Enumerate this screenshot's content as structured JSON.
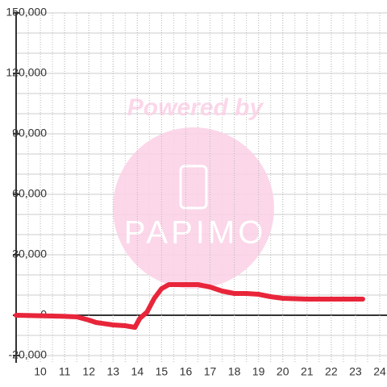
{
  "chart_data": {
    "type": "line",
    "watermark": {
      "top": "Powered by",
      "logo": "PAPIMO"
    },
    "x": [
      9,
      10.9,
      11.5,
      12,
      12.3,
      13,
      13.5,
      13.9,
      14.1,
      14.4,
      14.7,
      15,
      15.3,
      16,
      16.5,
      17,
      17.5,
      18,
      18.5,
      19,
      19.5,
      20,
      21,
      22,
      23.3
    ],
    "values": [
      0,
      -500,
      -800,
      -2400,
      -3600,
      -4800,
      -5200,
      -6000,
      -1600,
      1600,
      8400,
      13200,
      15200,
      15200,
      15200,
      14000,
      12000,
      10800,
      10800,
      10400,
      9200,
      8400,
      8000,
      8000,
      8000
    ],
    "color": "#e8253a",
    "xlim": [
      9,
      24.3
    ],
    "xticks": [
      10,
      11,
      12,
      13,
      14,
      15,
      16,
      17,
      18,
      19,
      20,
      21,
      22,
      23,
      24
    ],
    "ylim": [
      -20000,
      150000
    ],
    "yticks": [
      {
        "value": -20000,
        "label": "-20,000"
      },
      0,
      {
        "value": 30000,
        "label": "30,000"
      },
      {
        "value": 60000,
        "label": "60,000"
      },
      {
        "value": 90000,
        "label": "90,000"
      },
      {
        "value": 120000,
        "label": "120,000"
      },
      {
        "value": 150000,
        "label": "150,000"
      }
    ],
    "grid": true
  }
}
